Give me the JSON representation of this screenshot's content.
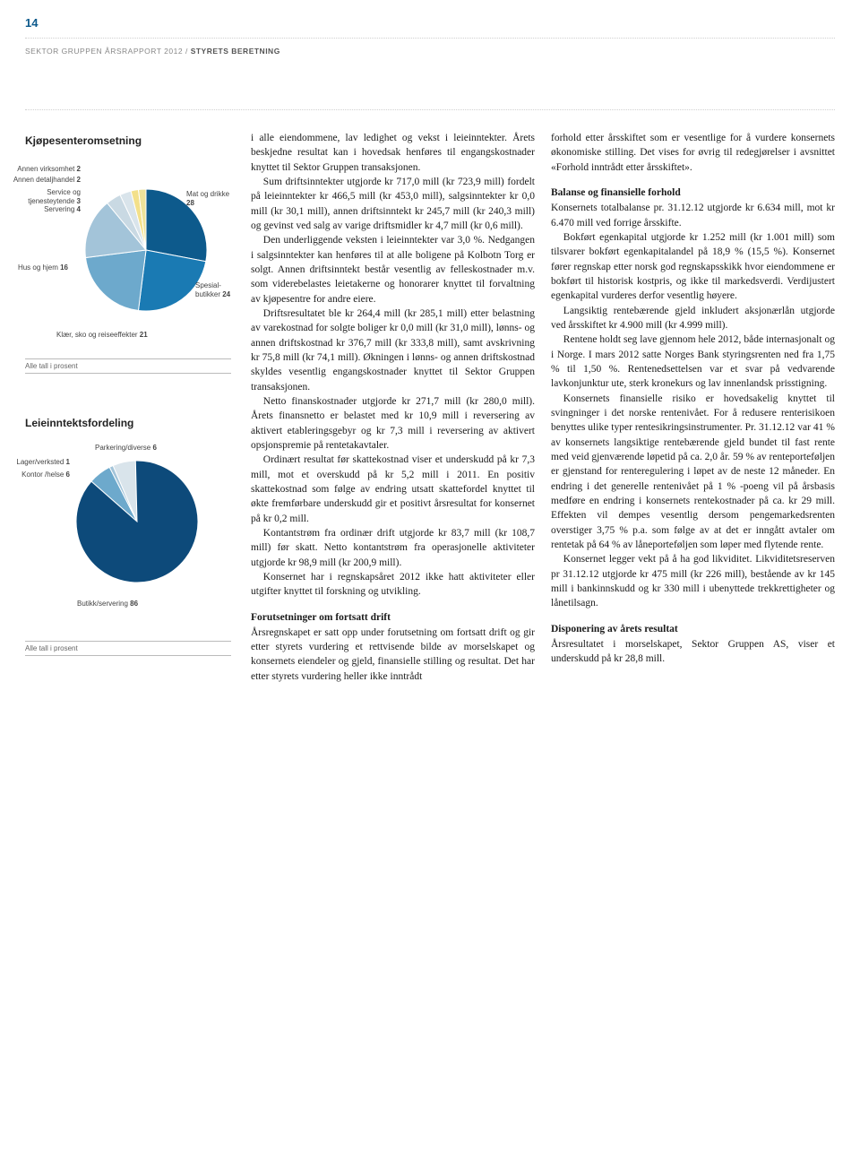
{
  "page_number": "14",
  "header": {
    "left": "SEKTOR GRUPPEN ÅRSRAPPORT 2012 /",
    "right": "STYRETS BERETNING"
  },
  "chart1": {
    "title": "Kjøpesenteromsetning",
    "type": "pie",
    "footer": "Alle tall i prosent",
    "background_color": "#ffffff",
    "slices": [
      {
        "label": "Mat og drikke",
        "value": 28,
        "color": "#0d5a8c"
      },
      {
        "label": "Spesial-\nbutikker",
        "value": 24,
        "color": "#1a7ab3"
      },
      {
        "label": "Klær, sko og reiseeffekter",
        "value": 21,
        "color": "#6da9cc"
      },
      {
        "label": "Hus og hjem",
        "value": 16,
        "color": "#a3c4d9"
      },
      {
        "label": "Servering",
        "value": 4,
        "color": "#c9d9e3"
      },
      {
        "label": "Service og\ntjenesteytende",
        "value": 3,
        "color": "#d9e4eb"
      },
      {
        "label": "Annen detaljhandel",
        "value": 2,
        "color": "#f3e08a"
      },
      {
        "label": "Annen virksomhet",
        "value": 2,
        "color": "#ede29a"
      }
    ]
  },
  "chart2": {
    "title": "Leieinntektsfordeling",
    "type": "pie",
    "footer": "Alle tall i prosent",
    "background_color": "#ffffff",
    "slices": [
      {
        "label": "Butikk/servering",
        "value": 86,
        "color": "#0d4a7a"
      },
      {
        "label": "Kontor /helse",
        "value": 6,
        "color": "#6da9cc"
      },
      {
        "label": "Lager/verksted",
        "value": 1,
        "color": "#a3c4d9"
      },
      {
        "label": "Parkering/diverse",
        "value": 6,
        "color": "#d9e4eb"
      }
    ]
  },
  "body": {
    "p1": "i alle eiendommene, lav ledighet og vekst i leieinntekter. Årets beskjedne resultat kan i hovedsak henføres til engangskostnader knyttet til Sektor Gruppen transaksjonen.",
    "p2": "Sum driftsinntekter utgjorde kr 717,0 mill (kr 723,9 mill) fordelt på leieinntekter kr 466,5 mill (kr 453,0 mill), salgsinntekter kr 0,0 mill (kr 30,1 mill), annen driftsinntekt kr 245,7 mill (kr 240,3 mill) og gevinst ved salg av varige driftsmidler kr 4,7 mill (kr 0,6 mill).",
    "p3": "Den underliggende veksten i leieinntekter var 3,0 %. Nedgangen i salgsinntekter kan henføres til at alle boligene på Kolbotn Torg er solgt. Annen driftsinntekt består vesentlig av felleskostnader m.v. som viderebelastes leietakerne og honorarer knyttet til forvaltning av kjøpesentre for andre eiere.",
    "p4": "Driftsresultatet ble kr 264,4 mill (kr 285,1 mill) etter belastning av varekostnad for solgte boliger kr 0,0 mill (kr 31,0 mill), lønns- og annen driftskostnad kr 376,7 mill (kr 333,8 mill), samt avskrivning kr 75,8 mill (kr 74,1 mill). Økningen i lønns- og annen driftskostnad skyldes vesentlig engangskostnader knyttet til Sektor Gruppen transaksjonen.",
    "p5": "Netto finanskostnader utgjorde kr 271,7 mill (kr 280,0 mill). Årets finansnetto er belastet med kr 10,9 mill i reversering av aktivert etableringsgebyr og kr 7,3 mill i reversering av aktivert opsjonspremie på rentetakavtaler.",
    "p6": "Ordinært resultat før skattekostnad viser et underskudd på kr 7,3 mill, mot et overskudd på kr 5,2 mill i 2011. En positiv skattekostnad som følge av endring utsatt skattefordel knyttet til økte fremførbare underskudd gir et positivt årsresultat for konsernet på kr 0,2 mill.",
    "p7": "Kontantstrøm fra ordinær drift utgjorde kr 83,7 mill (kr 108,7 mill) før skatt. Netto kontantstrøm fra operasjonelle aktiviteter utgjorde kr 98,9 mill (kr 200,9 mill).",
    "p8": "Konsernet har i regnskapsåret 2012 ikke hatt aktiviteter eller utgifter knyttet til forskning og utvikling.",
    "h1": "Forutsetninger om fortsatt drift",
    "p9": "Årsregnskapet er satt opp under forutsetning om fortsatt drift og gir etter styrets vurdering et rettvisende bilde av morselskapet og konsernets eiendeler og gjeld, finansielle stilling og resultat. Det har etter styrets vurdering heller ikke inntrådt",
    "p10": "forhold etter årsskiftet som er vesentlige for å vurdere konsernets økonomiske stilling. Det vises for øvrig til redegjørelser i avsnittet «Forhold inntrådt etter årsskiftet».",
    "h2": "Balanse og finansielle forhold",
    "p11": "Konsernets totalbalanse pr. 31.12.12 utgjorde kr 6.634 mill, mot kr 6.470 mill ved forrige årsskifte.",
    "p12": "Bokført egenkapital utgjorde kr 1.252 mill (kr 1.001 mill) som tilsvarer bokført egenkapitalandel på 18,9 % (15,5 %). Konsernet fører regnskap etter norsk god regnskapsskikk hvor eiendommene er bokført til historisk kostpris, og ikke til markedsverdi. Verdijustert egenkapital vurderes derfor vesentlig høyere.",
    "p13": "Langsiktig rentebærende gjeld inkludert aksjonærlån utgjorde ved årsskiftet kr 4.900 mill (kr 4.999 mill).",
    "p14": "Rentene holdt seg lave gjennom hele 2012, både internasjonalt og i Norge. I mars 2012 satte Norges Bank styringsrenten ned fra 1,75 % til 1,50 %. Rentenedsettelsen var et svar på vedvarende lavkonjunktur ute, sterk kronekurs og lav innenlandsk prisstigning.",
    "p15": "Konsernets finansielle risiko er hovedsakelig knyttet til svingninger i det norske rentenivået. For å redusere renterisikoen benyttes ulike typer rentesikringsinstrumenter. Pr. 31.12.12 var 41 % av konsernets langsiktige rentebærende gjeld bundet til fast rente med veid gjenværende løpetid på ca. 2,0 år. 59 % av renteporteføljen er gjenstand for renteregulering i løpet av de neste 12 måneder. En endring i det generelle rentenivået på 1 % -poeng vil på årsbasis medføre en endring i konsernets rentekostnader på ca. kr 29 mill. Effekten vil dempes vesentlig dersom pengemarkedsrenten overstiger 3,75 % p.a. som følge av at det er inngått avtaler om rentetak på 64 % av låneporteføljen som løper med flytende rente.",
    "p16": "Konsernet legger vekt på å ha god likviditet. Likviditetsreserven pr 31.12.12 utgjorde kr 475 mill (kr 226 mill), bestående av kr 145 mill i bankinnskudd og kr 330 mill i ubenyttede trekkrettigheter og lånetilsagn.",
    "h3": "Disponering av årets resultat",
    "p17": "Årsresultatet i morselskapet, Sektor Gruppen AS, viser et underskudd på kr 28,8 mill."
  }
}
